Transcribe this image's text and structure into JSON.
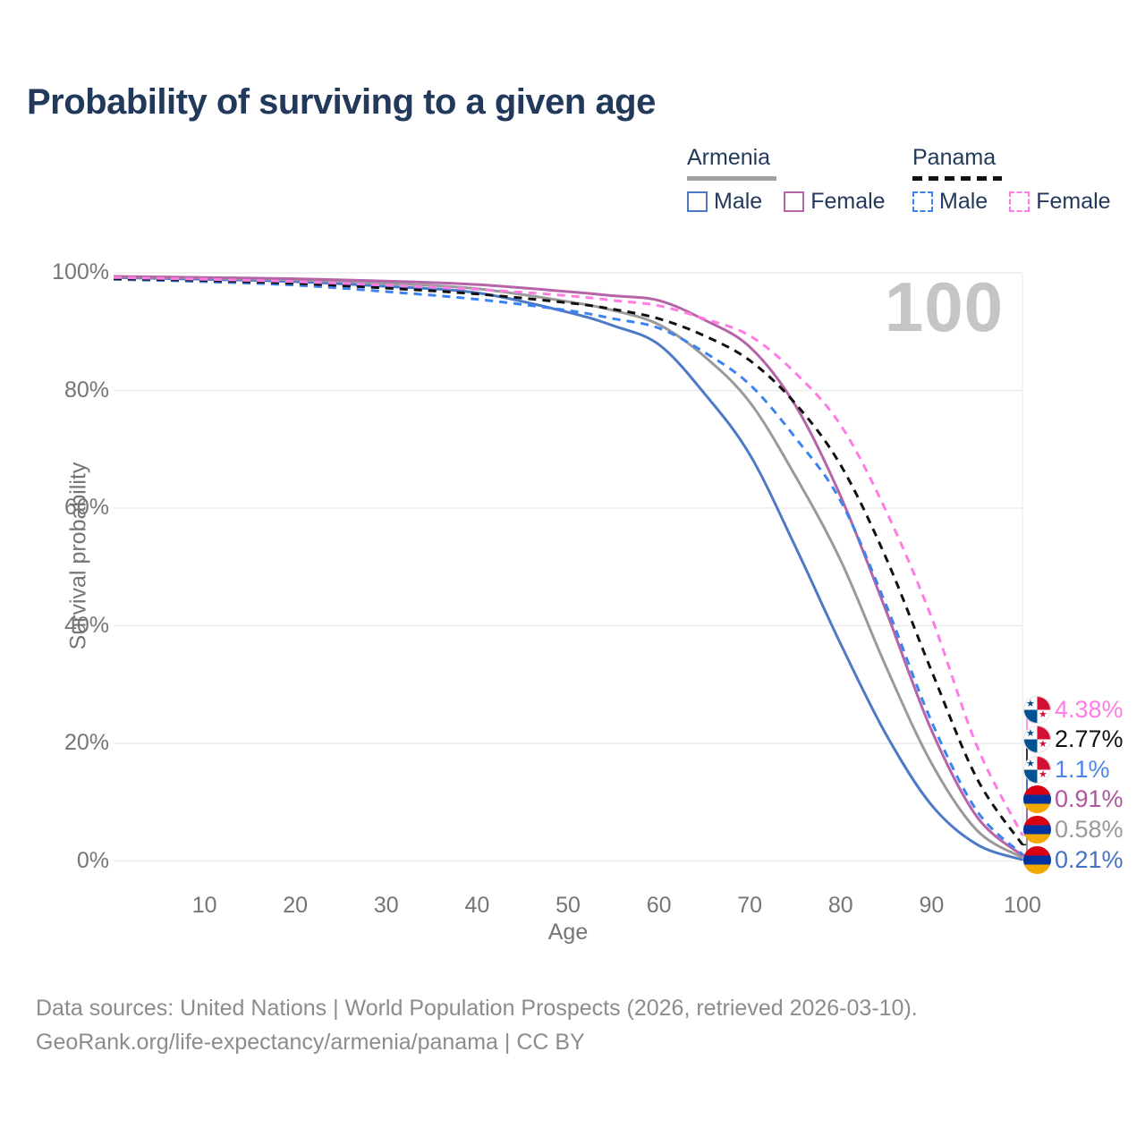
{
  "title": "Probability of surviving to a given age",
  "watermark": "100",
  "legend": {
    "groups": [
      {
        "label": "Armenia",
        "line_style": "solid",
        "rule_color": "#a0a0a0",
        "items": [
          {
            "label": "Male",
            "color": "#4e79c7"
          },
          {
            "label": "Female",
            "color": "#b565a7"
          }
        ]
      },
      {
        "label": "Panama",
        "line_style": "dashed",
        "rule_color": "#111111",
        "items": [
          {
            "label": "Male",
            "color": "#3c82f0"
          },
          {
            "label": "Female",
            "color": "#ff7ce4"
          }
        ]
      }
    ]
  },
  "chart_data": {
    "type": "line",
    "title": "Probability of surviving to a given age",
    "xlabel": "Age",
    "ylabel": "Survival probability",
    "xlim": [
      0,
      100
    ],
    "ylim": [
      0,
      100
    ],
    "grid": "horizontal",
    "x_ticks": [
      10,
      20,
      30,
      40,
      50,
      60,
      70,
      80,
      90,
      100
    ],
    "y_ticks": [
      "0%",
      "20%",
      "40%",
      "60%",
      "80%",
      "100%"
    ],
    "x": [
      0,
      10,
      20,
      30,
      40,
      50,
      55,
      60,
      65,
      70,
      75,
      80,
      85,
      90,
      95,
      100
    ],
    "series": [
      {
        "name": "Armenia Male",
        "country": "Armenia",
        "sex": "Male",
        "color": "#4e79c7",
        "dashed": false,
        "values": [
          99.2,
          98.9,
          98.5,
          97.7,
          96.6,
          93.3,
          91.0,
          87.8,
          79.5,
          69.1,
          53.5,
          36.9,
          21.5,
          9.5,
          2.8,
          0.21
        ]
      },
      {
        "name": "Armenia Both sexes",
        "country": "Armenia",
        "sex": "Both",
        "color": "#9a9a9a",
        "dashed": false,
        "values": [
          99.3,
          99.1,
          98.8,
          98.2,
          97.3,
          95.1,
          93.6,
          91.2,
          85.8,
          78.0,
          65.5,
          51.1,
          33.0,
          16.6,
          5.2,
          0.58
        ]
      },
      {
        "name": "Armenia Female",
        "country": "Armenia",
        "sex": "Female",
        "color": "#b565a7",
        "dashed": false,
        "values": [
          99.4,
          99.2,
          99.0,
          98.6,
          98.0,
          96.8,
          96.1,
          95.3,
          92.0,
          87.4,
          77.5,
          62.0,
          42.5,
          22.2,
          7.5,
          0.91
        ]
      },
      {
        "name": "Panama Male",
        "country": "Panama",
        "sex": "Male",
        "color": "#3c82f0",
        "dashed": true,
        "values": [
          98.9,
          98.5,
          97.9,
          96.8,
          95.5,
          93.6,
          92.2,
          90.6,
          86.5,
          81.0,
          72.0,
          61.2,
          43.5,
          23.7,
          8.5,
          1.1
        ]
      },
      {
        "name": "Panama Both sexes",
        "country": "Panama",
        "sex": "Both",
        "color": "#111111",
        "dashed": true,
        "values": [
          99.0,
          98.7,
          98.2,
          97.4,
          96.4,
          94.9,
          93.8,
          92.2,
          89.3,
          85.1,
          77.8,
          67.3,
          51.5,
          32.3,
          14.0,
          2.77
        ]
      },
      {
        "name": "Panama Female",
        "country": "Panama",
        "sex": "Female",
        "color": "#ff7ce4",
        "dashed": true,
        "values": [
          99.2,
          98.9,
          98.5,
          97.9,
          97.2,
          96.1,
          95.3,
          94.4,
          92.2,
          89.3,
          83.0,
          74.1,
          59.5,
          41.4,
          19.5,
          4.38
        ]
      }
    ],
    "end_labels": [
      {
        "text": "4.38%",
        "color": "#ff7ce4",
        "flag": "panama",
        "series": "Panama Female"
      },
      {
        "text": "2.77%",
        "color": "#111111",
        "flag": "panama",
        "series": "Panama Both sexes"
      },
      {
        "text": "1.1%",
        "color": "#4e86e8",
        "flag": "panama",
        "series": "Panama Male"
      },
      {
        "text": "0.91%",
        "color": "#b0569d",
        "flag": "armenia",
        "series": "Armenia Female"
      },
      {
        "text": "0.58%",
        "color": "#999999",
        "flag": "armenia",
        "series": "Armenia Both sexes"
      },
      {
        "text": "0.21%",
        "color": "#4472c4",
        "flag": "armenia",
        "series": "Armenia Male"
      }
    ],
    "flag_colors": {
      "armenia": {
        "red": "#d90012",
        "blue": "#0033a0",
        "orange": "#f2a800"
      },
      "panama": {
        "red": "#d21034",
        "blue": "#005293",
        "white": "#ffffff"
      }
    }
  },
  "footer": {
    "line1": "Data sources: United Nations | World Population Prospects (2026, retrieved 2026-03-10).",
    "line2": "GeoRank.org/life-expectancy/armenia/panama | CC BY"
  }
}
